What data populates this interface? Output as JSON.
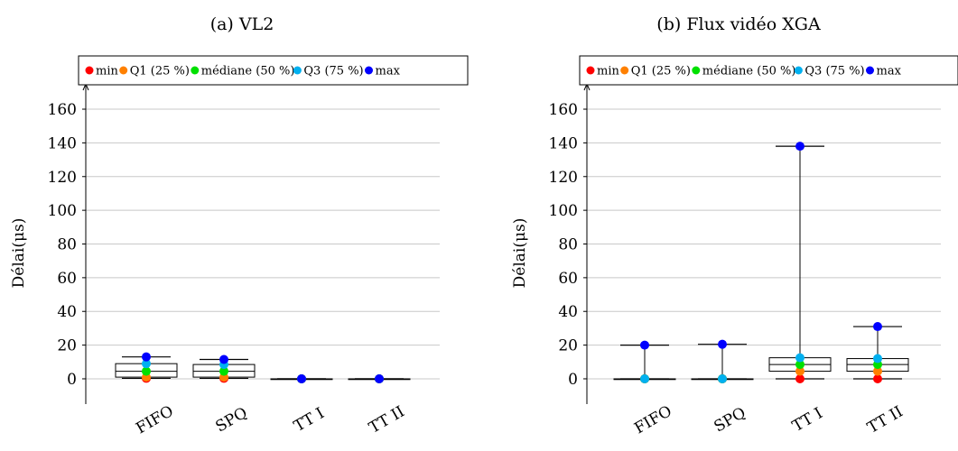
{
  "chart_data": [
    {
      "type": "box",
      "title": "(a) VL2",
      "ylabel": "Délai(μs)",
      "xlabel": "",
      "ylim": [
        -15,
        175
      ],
      "yticks": [
        0,
        20,
        40,
        60,
        80,
        100,
        120,
        140,
        160
      ],
      "grid": true,
      "legend_position": "top",
      "categories": [
        "FIFO",
        "SPQ",
        "TT I",
        "TT II"
      ],
      "legend": [
        {
          "key": "min",
          "label": "min",
          "color": "#ff0000"
        },
        {
          "key": "q1",
          "label": "Q1 (25 %)",
          "color": "#ff8000"
        },
        {
          "key": "median",
          "label": "médiane (50 %)",
          "color": "#00e000"
        },
        {
          "key": "q3",
          "label": "Q3 (75 %)",
          "color": "#00b0f0"
        },
        {
          "key": "max",
          "label": "max",
          "color": "#0000ff"
        }
      ],
      "boxes": [
        {
          "min": 0.3,
          "q1": 1.0,
          "median": 4.5,
          "q3": 9.0,
          "max": 13.0
        },
        {
          "min": 0.3,
          "q1": 1.0,
          "median": 4.5,
          "q3": 8.5,
          "max": 11.5
        },
        {
          "min": 0,
          "q1": 0,
          "median": 0,
          "q3": 0,
          "max": 0
        },
        {
          "min": 0,
          "q1": 0,
          "median": 0,
          "q3": 0,
          "max": 0
        }
      ]
    },
    {
      "type": "box",
      "title": "(b) Flux vidéo XGA",
      "ylabel": "Délai(μs)",
      "xlabel": "",
      "ylim": [
        -15,
        175
      ],
      "yticks": [
        0,
        20,
        40,
        60,
        80,
        100,
        120,
        140,
        160
      ],
      "grid": true,
      "legend_position": "top",
      "categories": [
        "FIFO",
        "SPQ",
        "TT I",
        "TT II"
      ],
      "legend": [
        {
          "key": "min",
          "label": "min",
          "color": "#ff0000"
        },
        {
          "key": "q1",
          "label": "Q1 (25 %)",
          "color": "#ff8000"
        },
        {
          "key": "median",
          "label": "médiane (50 %)",
          "color": "#00e000"
        },
        {
          "key": "q3",
          "label": "Q3 (75 %)",
          "color": "#00b0f0"
        },
        {
          "key": "max",
          "label": "max",
          "color": "#0000ff"
        }
      ],
      "boxes": [
        {
          "min": 0,
          "q1": 0,
          "median": 0,
          "q3": 0,
          "max": 20
        },
        {
          "min": 0,
          "q1": 0,
          "median": 0,
          "q3": 0,
          "max": 20.5
        },
        {
          "min": 0,
          "q1": 4.5,
          "median": 8.5,
          "q3": 12.5,
          "max": 138
        },
        {
          "min": 0,
          "q1": 4.5,
          "median": 8.5,
          "q3": 12.0,
          "max": 31
        }
      ]
    }
  ]
}
